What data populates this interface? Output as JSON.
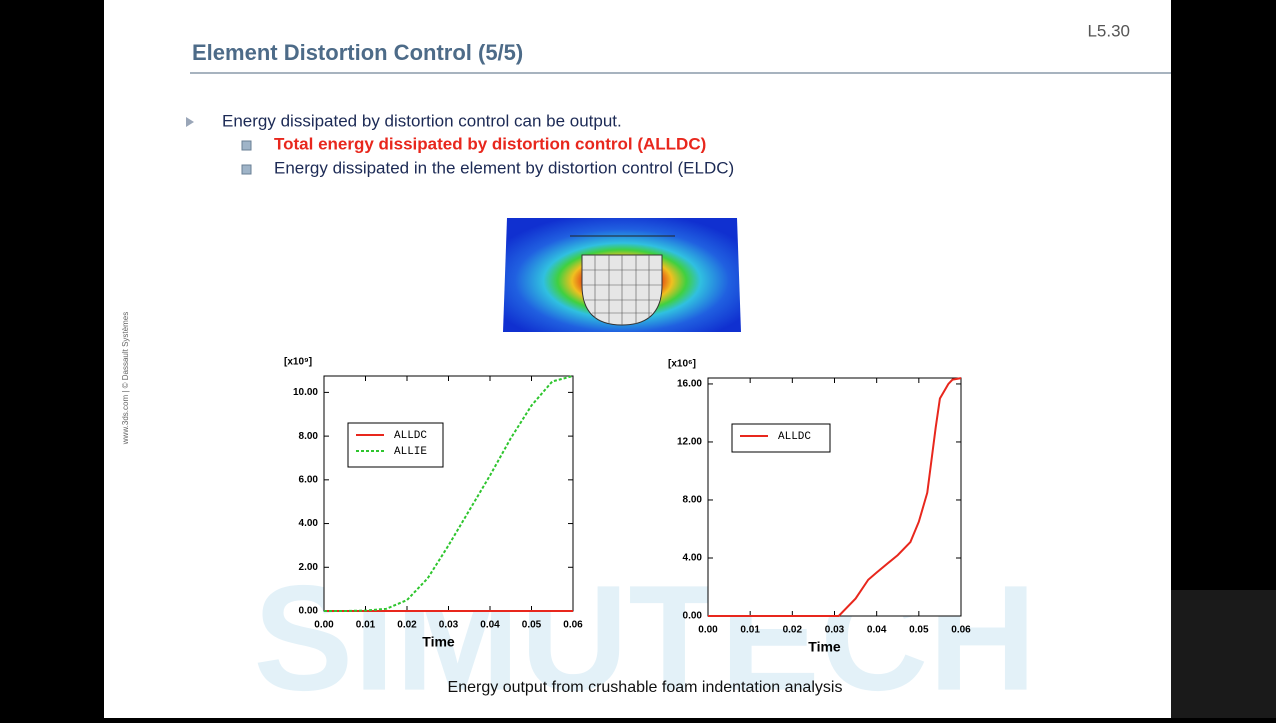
{
  "slide_number": "L5.30",
  "title": "Element Distortion Control (5/5)",
  "bullets": {
    "main": "Energy dissipated by distortion control can be output.",
    "sub": [
      "Total energy dissipated by distortion control (ALLDC)",
      "Energy dissipated in the element by distortion control (ELDC)"
    ]
  },
  "side_text": "www.3ds.com | © Dassault Systèmes",
  "watermark": "SIMUTECH",
  "caption": "Energy output from crushable foam indentation analysis",
  "chart_data": [
    {
      "type": "line",
      "multiplier": "[x10⁹]",
      "x_label": "Time",
      "xlim": [
        0,
        0.06
      ],
      "ylim": [
        0,
        10.75
      ],
      "xticks": [
        {
          "value": 0,
          "label": "0.00"
        },
        {
          "value": 0.01,
          "label": "0.01"
        },
        {
          "value": 0.02,
          "label": "0.02"
        },
        {
          "value": 0.03,
          "label": "0.03"
        },
        {
          "value": 0.04,
          "label": "0.04"
        },
        {
          "value": 0.05,
          "label": "0.05"
        },
        {
          "value": 0.06,
          "label": "0.06"
        }
      ],
      "yticks": [
        {
          "value": 0,
          "label": "0.00"
        },
        {
          "value": 2,
          "label": "2.00"
        },
        {
          "value": 4,
          "label": "4.00"
        },
        {
          "value": 6,
          "label": "6.00"
        },
        {
          "value": 8,
          "label": "8.00"
        },
        {
          "value": 10,
          "label": "10.00"
        }
      ],
      "x": [
        0,
        0.005,
        0.01,
        0.015,
        0.02,
        0.025,
        0.03,
        0.035,
        0.04,
        0.045,
        0.05,
        0.055,
        0.06
      ],
      "series": [
        {
          "name": "ALLDC",
          "color": "#e8271d",
          "dashed": false,
          "values": [
            0,
            0,
            0,
            0,
            0,
            0,
            0,
            0,
            0,
            0,
            0,
            0,
            0
          ]
        },
        {
          "name": "ALLIE",
          "color": "#2ec52e",
          "dashed": true,
          "values": [
            0,
            0,
            0.02,
            0.1,
            0.5,
            1.5,
            3.0,
            4.6,
            6.2,
            7.9,
            9.4,
            10.5,
            10.75
          ]
        }
      ]
    },
    {
      "type": "line",
      "multiplier": "[x10⁶]",
      "x_label": "Time",
      "xlim": [
        0,
        0.06
      ],
      "ylim": [
        0,
        16.41
      ],
      "xticks": [
        {
          "value": 0,
          "label": "0.00"
        },
        {
          "value": 0.01,
          "label": "0.01"
        },
        {
          "value": 0.02,
          "label": "0.02"
        },
        {
          "value": 0.03,
          "label": "0.03"
        },
        {
          "value": 0.04,
          "label": "0.04"
        },
        {
          "value": 0.05,
          "label": "0.05"
        },
        {
          "value": 0.06,
          "label": "0.06"
        }
      ],
      "yticks": [
        {
          "value": 0,
          "label": "0.00"
        },
        {
          "value": 4,
          "label": "4.00"
        },
        {
          "value": 8,
          "label": "8.00"
        },
        {
          "value": 12,
          "label": "12.00"
        },
        {
          "value": 16,
          "label": "16.00"
        }
      ],
      "x": [
        0,
        0.03,
        0.031,
        0.035,
        0.038,
        0.04,
        0.045,
        0.048,
        0.05,
        0.052,
        0.054,
        0.055,
        0.057,
        0.058,
        0.06
      ],
      "series": [
        {
          "name": "ALLDC",
          "color": "#e8271d",
          "dashed": false,
          "values": [
            0,
            0,
            0,
            1.2,
            2.5,
            3.0,
            4.2,
            5.1,
            6.5,
            8.5,
            13,
            15,
            16,
            16.3,
            16.4
          ]
        }
      ]
    }
  ]
}
